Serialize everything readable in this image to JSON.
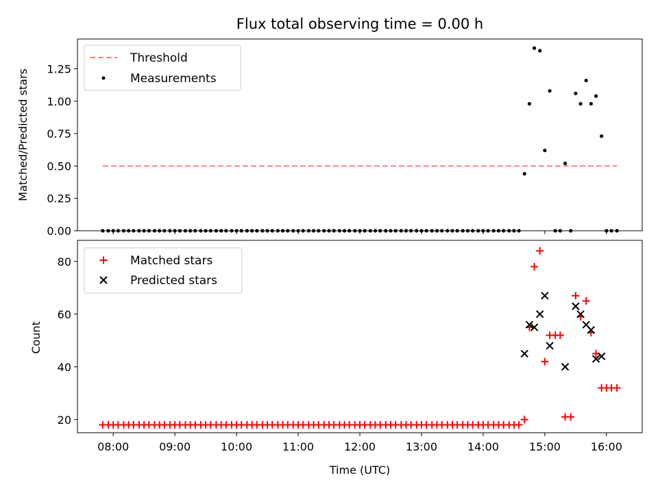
{
  "chart_data": [
    {
      "type": "scatter",
      "title": "Flux total observing time = 0.00 h",
      "xlabel": "",
      "ylabel": "Matched/Predicted stars",
      "xlim": [
        7.42,
        16.58
      ],
      "ylim": [
        0,
        1.48
      ],
      "yticks": [
        0.0,
        0.25,
        0.5,
        0.75,
        1.0,
        1.25
      ],
      "ytick_labels": [
        "0.00",
        "0.25",
        "0.50",
        "0.75",
        "1.00",
        "1.25"
      ],
      "threshold": {
        "name": "Threshold",
        "value": 0.5,
        "x_start": 7.83,
        "x_end": 16.17,
        "color": "#ff7f7f"
      },
      "series": [
        {
          "name": "Measurements",
          "color": "#000000",
          "marker": "dot",
          "points": [
            [
              7.83,
              0
            ],
            [
              7.92,
              0
            ],
            [
              8.0,
              0
            ],
            [
              8.08,
              0
            ],
            [
              8.17,
              0
            ],
            [
              8.25,
              0
            ],
            [
              8.33,
              0
            ],
            [
              8.42,
              0
            ],
            [
              8.5,
              0
            ],
            [
              8.58,
              0
            ],
            [
              8.67,
              0
            ],
            [
              8.75,
              0
            ],
            [
              8.83,
              0
            ],
            [
              8.92,
              0
            ],
            [
              9.0,
              0
            ],
            [
              9.08,
              0
            ],
            [
              9.17,
              0
            ],
            [
              9.25,
              0
            ],
            [
              9.33,
              0
            ],
            [
              9.42,
              0
            ],
            [
              9.5,
              0
            ],
            [
              9.58,
              0
            ],
            [
              9.67,
              0
            ],
            [
              9.75,
              0
            ],
            [
              9.83,
              0
            ],
            [
              9.92,
              0
            ],
            [
              10.0,
              0
            ],
            [
              10.08,
              0
            ],
            [
              10.17,
              0
            ],
            [
              10.25,
              0
            ],
            [
              10.33,
              0
            ],
            [
              10.42,
              0
            ],
            [
              10.5,
              0
            ],
            [
              10.58,
              0
            ],
            [
              10.67,
              0
            ],
            [
              10.75,
              0
            ],
            [
              10.83,
              0
            ],
            [
              10.92,
              0
            ],
            [
              11.0,
              0
            ],
            [
              11.08,
              0
            ],
            [
              11.17,
              0
            ],
            [
              11.25,
              0
            ],
            [
              11.33,
              0
            ],
            [
              11.42,
              0
            ],
            [
              11.5,
              0
            ],
            [
              11.58,
              0
            ],
            [
              11.67,
              0
            ],
            [
              11.75,
              0
            ],
            [
              11.83,
              0
            ],
            [
              11.92,
              0
            ],
            [
              12.0,
              0
            ],
            [
              12.08,
              0
            ],
            [
              12.17,
              0
            ],
            [
              12.25,
              0
            ],
            [
              12.33,
              0
            ],
            [
              12.42,
              0
            ],
            [
              12.5,
              0
            ],
            [
              12.58,
              0
            ],
            [
              12.67,
              0
            ],
            [
              12.75,
              0
            ],
            [
              12.83,
              0
            ],
            [
              12.92,
              0
            ],
            [
              13.0,
              0
            ],
            [
              13.08,
              0
            ],
            [
              13.17,
              0
            ],
            [
              13.25,
              0
            ],
            [
              13.33,
              0
            ],
            [
              13.42,
              0
            ],
            [
              13.5,
              0
            ],
            [
              13.58,
              0
            ],
            [
              13.67,
              0
            ],
            [
              13.75,
              0
            ],
            [
              13.83,
              0
            ],
            [
              13.92,
              0
            ],
            [
              14.0,
              0
            ],
            [
              14.08,
              0
            ],
            [
              14.17,
              0
            ],
            [
              14.25,
              0
            ],
            [
              14.33,
              0
            ],
            [
              14.42,
              0
            ],
            [
              14.5,
              0
            ],
            [
              14.58,
              0
            ],
            [
              14.67,
              0.44
            ],
            [
              14.75,
              0.98
            ],
            [
              14.83,
              1.41
            ],
            [
              14.92,
              1.39
            ],
            [
              15.0,
              0.62
            ],
            [
              15.08,
              1.08
            ],
            [
              15.17,
              0
            ],
            [
              15.25,
              0
            ],
            [
              15.33,
              0.52
            ],
            [
              15.42,
              0
            ],
            [
              15.5,
              1.06
            ],
            [
              15.58,
              0.98
            ],
            [
              15.67,
              1.16
            ],
            [
              15.75,
              0.98
            ],
            [
              15.83,
              1.04
            ],
            [
              15.92,
              0.73
            ],
            [
              16.0,
              0
            ],
            [
              16.08,
              0
            ],
            [
              16.17,
              0
            ]
          ]
        }
      ],
      "legend": {
        "position": "top-left",
        "entries": [
          "Threshold",
          "Measurements"
        ]
      }
    },
    {
      "type": "scatter",
      "title": "",
      "xlabel": "Time (UTC)",
      "ylabel": "Count",
      "xlim": [
        7.42,
        16.58
      ],
      "ylim": [
        15,
        88
      ],
      "yticks": [
        20,
        40,
        60,
        80
      ],
      "ytick_labels": [
        "20",
        "40",
        "60",
        "80"
      ],
      "xticks": [
        8,
        9,
        10,
        11,
        12,
        13,
        14,
        15,
        16
      ],
      "xtick_labels": [
        "08:00",
        "09:00",
        "10:00",
        "11:00",
        "12:00",
        "13:00",
        "14:00",
        "15:00",
        "16:00"
      ],
      "series": [
        {
          "name": "Matched stars",
          "color": "#ff0000",
          "marker": "plus",
          "points": [
            [
              7.83,
              18
            ],
            [
              7.92,
              18
            ],
            [
              8.0,
              18
            ],
            [
              8.08,
              18
            ],
            [
              8.17,
              18
            ],
            [
              8.25,
              18
            ],
            [
              8.33,
              18
            ],
            [
              8.42,
              18
            ],
            [
              8.5,
              18
            ],
            [
              8.58,
              18
            ],
            [
              8.67,
              18
            ],
            [
              8.75,
              18
            ],
            [
              8.83,
              18
            ],
            [
              8.92,
              18
            ],
            [
              9.0,
              18
            ],
            [
              9.08,
              18
            ],
            [
              9.17,
              18
            ],
            [
              9.25,
              18
            ],
            [
              9.33,
              18
            ],
            [
              9.42,
              18
            ],
            [
              9.5,
              18
            ],
            [
              9.58,
              18
            ],
            [
              9.67,
              18
            ],
            [
              9.75,
              18
            ],
            [
              9.83,
              18
            ],
            [
              9.92,
              18
            ],
            [
              10.0,
              18
            ],
            [
              10.08,
              18
            ],
            [
              10.17,
              18
            ],
            [
              10.25,
              18
            ],
            [
              10.33,
              18
            ],
            [
              10.42,
              18
            ],
            [
              10.5,
              18
            ],
            [
              10.58,
              18
            ],
            [
              10.67,
              18
            ],
            [
              10.75,
              18
            ],
            [
              10.83,
              18
            ],
            [
              10.92,
              18
            ],
            [
              11.0,
              18
            ],
            [
              11.08,
              18
            ],
            [
              11.17,
              18
            ],
            [
              11.25,
              18
            ],
            [
              11.33,
              18
            ],
            [
              11.42,
              18
            ],
            [
              11.5,
              18
            ],
            [
              11.58,
              18
            ],
            [
              11.67,
              18
            ],
            [
              11.75,
              18
            ],
            [
              11.83,
              18
            ],
            [
              11.92,
              18
            ],
            [
              12.0,
              18
            ],
            [
              12.08,
              18
            ],
            [
              12.17,
              18
            ],
            [
              12.25,
              18
            ],
            [
              12.33,
              18
            ],
            [
              12.42,
              18
            ],
            [
              12.5,
              18
            ],
            [
              12.58,
              18
            ],
            [
              12.67,
              18
            ],
            [
              12.75,
              18
            ],
            [
              12.83,
              18
            ],
            [
              12.92,
              18
            ],
            [
              13.0,
              18
            ],
            [
              13.08,
              18
            ],
            [
              13.17,
              18
            ],
            [
              13.25,
              18
            ],
            [
              13.33,
              18
            ],
            [
              13.42,
              18
            ],
            [
              13.5,
              18
            ],
            [
              13.58,
              18
            ],
            [
              13.67,
              18
            ],
            [
              13.75,
              18
            ],
            [
              13.83,
              18
            ],
            [
              13.92,
              18
            ],
            [
              14.0,
              18
            ],
            [
              14.08,
              18
            ],
            [
              14.17,
              18
            ],
            [
              14.25,
              18
            ],
            [
              14.33,
              18
            ],
            [
              14.42,
              18
            ],
            [
              14.5,
              18
            ],
            [
              14.58,
              18
            ],
            [
              14.67,
              20
            ],
            [
              14.75,
              55
            ],
            [
              14.83,
              78
            ],
            [
              14.92,
              84
            ],
            [
              15.0,
              42
            ],
            [
              15.08,
              52
            ],
            [
              15.17,
              52
            ],
            [
              15.25,
              52
            ],
            [
              15.33,
              21
            ],
            [
              15.42,
              21
            ],
            [
              15.5,
              67
            ],
            [
              15.58,
              59
            ],
            [
              15.67,
              65
            ],
            [
              15.75,
              53
            ],
            [
              15.83,
              45
            ],
            [
              15.92,
              32
            ],
            [
              16.0,
              32
            ],
            [
              16.08,
              32
            ],
            [
              16.17,
              32
            ]
          ]
        },
        {
          "name": "Predicted stars",
          "color": "#000000",
          "marker": "x",
          "points": [
            [
              14.67,
              45
            ],
            [
              14.75,
              56
            ],
            [
              14.83,
              55
            ],
            [
              14.92,
              60
            ],
            [
              15.0,
              67
            ],
            [
              15.08,
              48
            ],
            [
              15.33,
              40
            ],
            [
              15.5,
              63
            ],
            [
              15.58,
              60
            ],
            [
              15.67,
              56
            ],
            [
              15.75,
              54
            ],
            [
              15.83,
              43
            ],
            [
              15.92,
              44
            ]
          ]
        }
      ],
      "legend": {
        "position": "top-left",
        "entries": [
          "Matched stars",
          "Predicted stars"
        ]
      }
    }
  ]
}
